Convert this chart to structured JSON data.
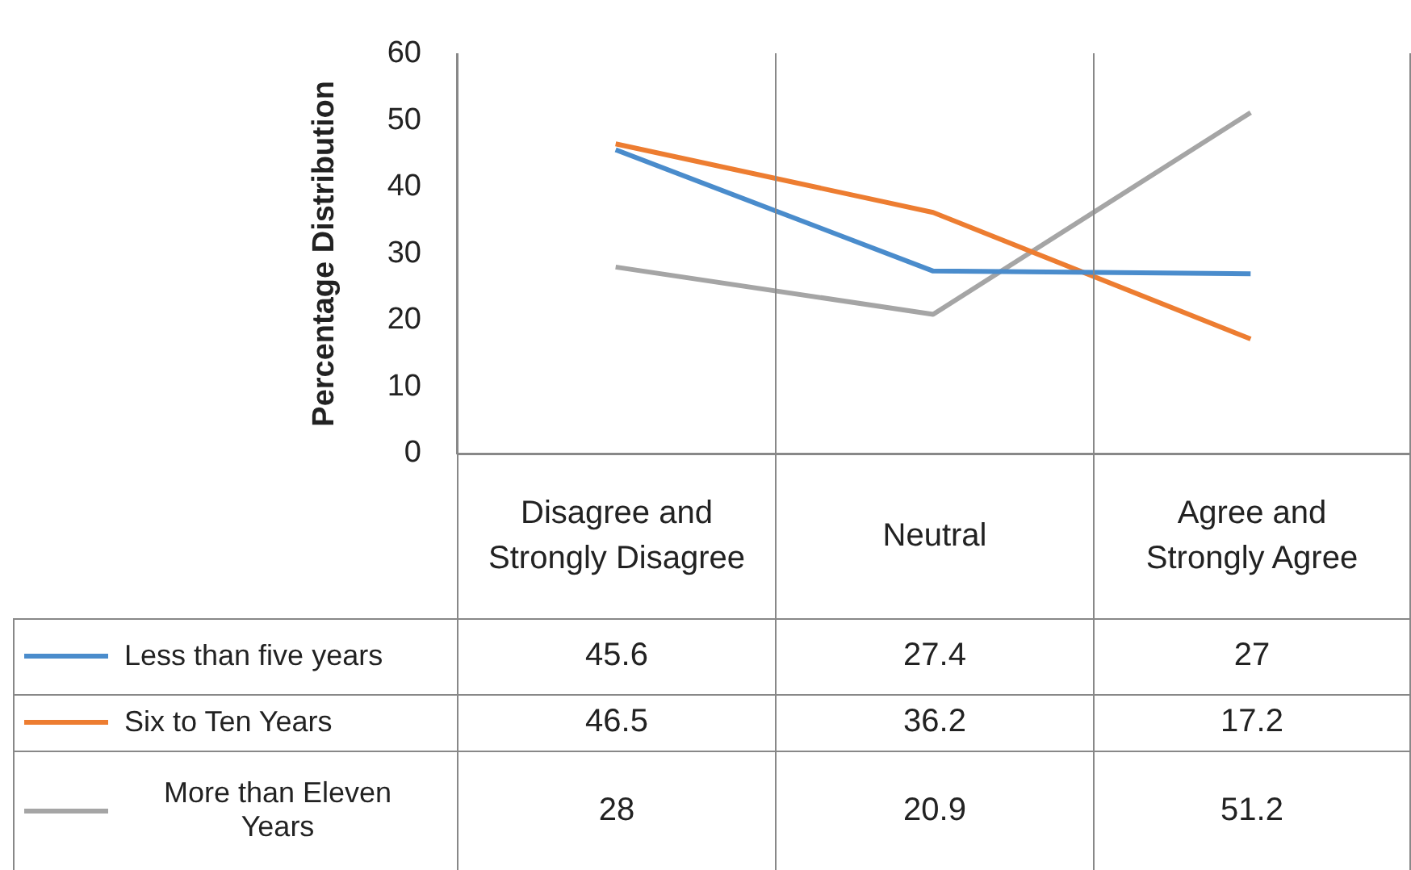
{
  "chart_data": {
    "type": "line",
    "ylabel": "Percentage Distribution",
    "categories": [
      "Disagree and Strongly Disagree",
      "Neutral",
      "Agree and Strongly Agree"
    ],
    "series": [
      {
        "name": "Less than five years",
        "color": "#4a8ccc",
        "values": [
          45.6,
          27.4,
          27
        ]
      },
      {
        "name": "Six to Ten Years",
        "color": "#ed7d31",
        "values": [
          46.5,
          36.2,
          17.2
        ]
      },
      {
        "name": "More than Eleven Years",
        "color": "#a5a5a5",
        "values": [
          28,
          20.9,
          51.2
        ]
      }
    ],
    "ylim": [
      0,
      60
    ],
    "yticks": [
      0,
      10,
      20,
      30,
      40,
      50,
      60
    ],
    "grid": false,
    "legend": "bottom",
    "data_labels": true,
    "marker": "none",
    "line_style": "solid"
  }
}
